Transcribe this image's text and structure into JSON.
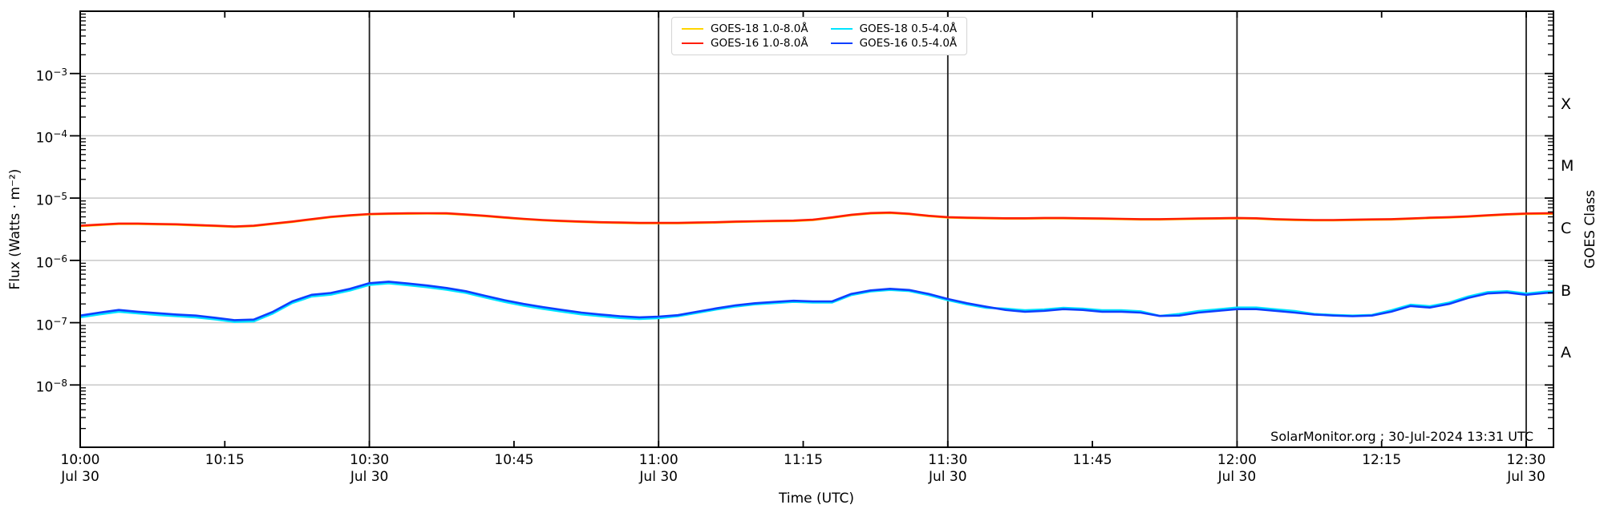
{
  "chart_data": {
    "type": "line",
    "title": "",
    "source_annotation": "SolarMonitor.org : 30-Jul-2024 13:31 UTC",
    "xlabel": "Time (UTC)",
    "ylabel": "Flux (Watts · m⁻²)",
    "ylabel_right": "GOES Class",
    "y_axis": {
      "scale": "log",
      "min": 1e-09,
      "max": 0.01,
      "labeled_decade_exponents": [
        -3,
        -4,
        -5,
        -6,
        -7,
        -8
      ],
      "gridline_color": "#c8c8c8"
    },
    "x_axis": {
      "unit": "minutes after 10:00 UTC on Jul 30",
      "range_minutes": [
        0,
        152.8
      ],
      "ticks": [
        {
          "t": 0,
          "label": "10:00",
          "date": "Jul 30"
        },
        {
          "t": 15,
          "label": "10:15"
        },
        {
          "t": 30,
          "label": "10:30",
          "date": "Jul 30"
        },
        {
          "t": 45,
          "label": "10:45"
        },
        {
          "t": 60,
          "label": "11:00",
          "date": "Jul 30"
        },
        {
          "t": 75,
          "label": "11:15"
        },
        {
          "t": 90,
          "label": "11:30",
          "date": "Jul 30"
        },
        {
          "t": 105,
          "label": "11:45"
        },
        {
          "t": 120,
          "label": "12:00",
          "date": "Jul 30"
        },
        {
          "t": 135,
          "label": "12:15"
        },
        {
          "t": 150,
          "label": "12:30",
          "date": "Jul 30"
        }
      ],
      "vertical_gridlines_t": [
        30,
        60,
        90,
        120,
        150
      ],
      "vertical_gridline_color": "#1c1c1c"
    },
    "goes_classes": [
      {
        "label": "X",
        "log_flux": -3.5
      },
      {
        "label": "M",
        "log_flux": -4.5
      },
      {
        "label": "C",
        "log_flux": -5.5
      },
      {
        "label": "B",
        "log_flux": -6.5
      },
      {
        "label": "A",
        "log_flux": -7.5
      }
    ],
    "legend": {
      "position": "upper-center",
      "entries": [
        "GOES-18 1.0-8.0Å",
        "GOES-16 1.0-8.0Å",
        "GOES-18 0.5-4.0Å",
        "GOES-16 0.5-4.0Å"
      ]
    },
    "x_minutes": [
      0,
      2,
      4,
      6,
      8,
      10,
      12,
      14,
      16,
      18,
      20,
      22,
      24,
      26,
      28,
      30,
      32,
      34,
      36,
      38,
      40,
      42,
      44,
      46,
      48,
      50,
      52,
      54,
      56,
      58,
      60,
      62,
      64,
      66,
      68,
      70,
      72,
      74,
      76,
      78,
      80,
      82,
      84,
      86,
      88,
      90,
      92,
      94,
      96,
      98,
      100,
      102,
      104,
      106,
      108,
      110,
      112,
      114,
      116,
      118,
      120,
      122,
      124,
      126,
      128,
      130,
      132,
      134,
      136,
      138,
      140,
      142,
      144,
      146,
      148,
      150,
      152,
      153
    ],
    "series": [
      {
        "name": "GOES-18 1.0-8.0Å",
        "color": "#ffd500",
        "scale": 1e-06,
        "values": [
          3.55,
          3.69,
          3.84,
          3.84,
          3.79,
          3.74,
          3.64,
          3.55,
          3.45,
          3.55,
          3.84,
          4.14,
          4.53,
          4.93,
          5.22,
          5.47,
          5.57,
          5.61,
          5.63,
          5.61,
          5.37,
          5.12,
          4.83,
          4.58,
          4.38,
          4.24,
          4.14,
          4.04,
          3.99,
          3.94,
          3.94,
          3.94,
          3.99,
          4.04,
          4.14,
          4.19,
          4.24,
          4.28,
          4.43,
          4.83,
          5.32,
          5.66,
          5.76,
          5.52,
          5.12,
          4.88,
          4.78,
          4.73,
          4.68,
          4.68,
          4.73,
          4.73,
          4.68,
          4.63,
          4.58,
          4.53,
          4.53,
          4.58,
          4.63,
          4.68,
          4.73,
          4.68,
          4.53,
          4.43,
          4.38,
          4.38,
          4.43,
          4.48,
          4.53,
          4.63,
          4.78,
          4.88,
          5.02,
          5.22,
          5.42,
          5.56,
          5.61,
          5.61
        ]
      },
      {
        "name": "GOES-16 1.0-8.0Å",
        "color": "#ff1e00",
        "scale": 1e-06,
        "values": [
          3.6,
          3.75,
          3.9,
          3.9,
          3.85,
          3.8,
          3.7,
          3.6,
          3.5,
          3.6,
          3.9,
          4.2,
          4.6,
          5.0,
          5.3,
          5.55,
          5.65,
          5.7,
          5.72,
          5.7,
          5.45,
          5.2,
          4.9,
          4.65,
          4.45,
          4.3,
          4.2,
          4.1,
          4.05,
          4.0,
          4.0,
          4.0,
          4.05,
          4.1,
          4.2,
          4.25,
          4.3,
          4.35,
          4.5,
          4.9,
          5.4,
          5.75,
          5.85,
          5.6,
          5.2,
          4.95,
          4.85,
          4.8,
          4.75,
          4.75,
          4.8,
          4.8,
          4.75,
          4.7,
          4.65,
          4.6,
          4.6,
          4.65,
          4.7,
          4.75,
          4.8,
          4.75,
          4.6,
          4.5,
          4.45,
          4.45,
          4.5,
          4.55,
          4.6,
          4.7,
          4.85,
          4.95,
          5.1,
          5.3,
          5.5,
          5.65,
          5.7,
          5.7
        ]
      },
      {
        "name": "GOES-18 0.5-4.0Å",
        "color": "#00e5ff",
        "scale": 1e-07,
        "values": [
          1.22,
          1.36,
          1.5,
          1.41,
          1.33,
          1.27,
          1.22,
          1.13,
          1.03,
          1.05,
          1.41,
          2.07,
          2.63,
          2.82,
          3.29,
          4.04,
          4.28,
          4.0,
          3.71,
          3.38,
          3.01,
          2.54,
          2.16,
          1.88,
          1.67,
          1.5,
          1.36,
          1.27,
          1.19,
          1.15,
          1.18,
          1.27,
          1.44,
          1.63,
          1.82,
          1.97,
          2.06,
          2.16,
          2.11,
          2.11,
          2.78,
          3.17,
          3.36,
          3.22,
          2.78,
          2.3,
          1.97,
          1.73,
          1.68,
          1.58,
          1.63,
          1.73,
          1.68,
          1.58,
          1.58,
          1.52,
          1.28,
          1.38,
          1.54,
          1.64,
          1.75,
          1.75,
          1.64,
          1.54,
          1.38,
          1.33,
          1.3,
          1.33,
          1.58,
          1.94,
          1.84,
          2.1,
          2.63,
          3.1,
          3.2,
          2.94,
          3.15,
          3.2
        ]
      },
      {
        "name": "GOES-16 0.5-4.0Å",
        "color": "#0d3fff",
        "scale": 1e-07,
        "values": [
          1.3,
          1.45,
          1.6,
          1.5,
          1.42,
          1.35,
          1.3,
          1.2,
          1.1,
          1.12,
          1.5,
          2.2,
          2.8,
          3.0,
          3.5,
          4.3,
          4.55,
          4.25,
          3.95,
          3.6,
          3.2,
          2.7,
          2.3,
          2.0,
          1.78,
          1.6,
          1.45,
          1.35,
          1.27,
          1.22,
          1.25,
          1.32,
          1.5,
          1.7,
          1.9,
          2.05,
          2.15,
          2.25,
          2.2,
          2.2,
          2.9,
          3.3,
          3.5,
          3.35,
          2.9,
          2.4,
          2.05,
          1.8,
          1.6,
          1.5,
          1.55,
          1.65,
          1.6,
          1.5,
          1.5,
          1.45,
          1.28,
          1.3,
          1.45,
          1.55,
          1.65,
          1.65,
          1.55,
          1.45,
          1.35,
          1.3,
          1.27,
          1.3,
          1.5,
          1.85,
          1.75,
          2.0,
          2.5,
          2.95,
          3.05,
          2.8,
          3.0,
          3.05
        ]
      }
    ]
  }
}
